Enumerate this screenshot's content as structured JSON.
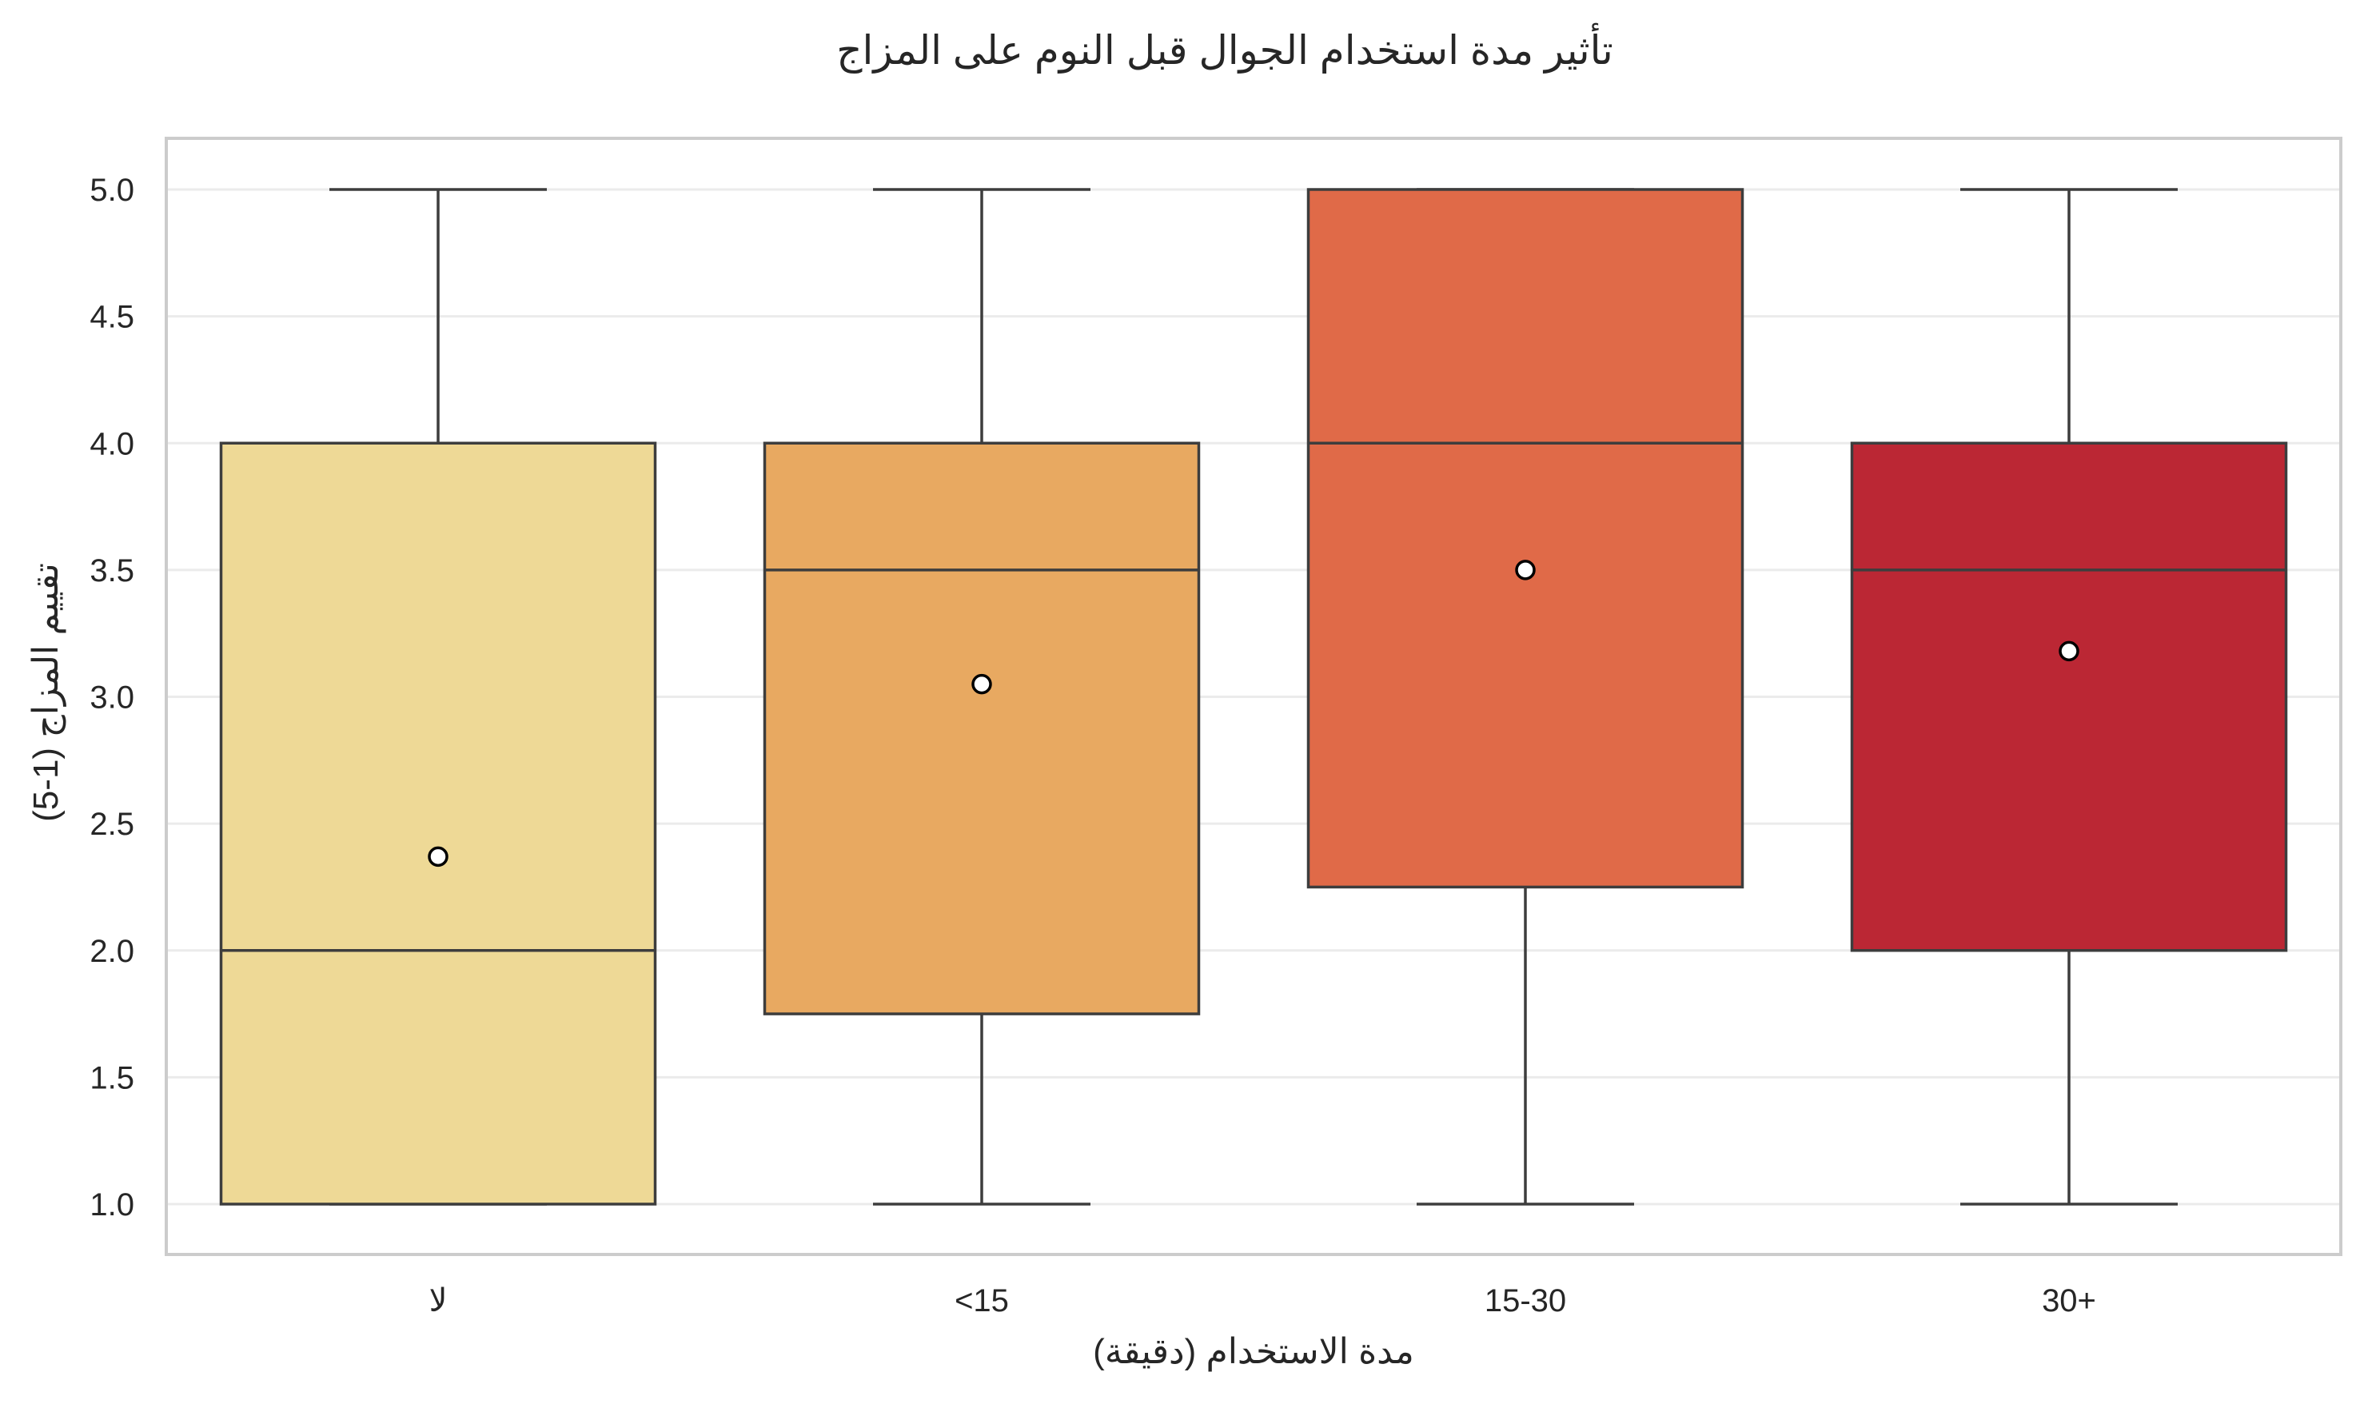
{
  "chart_data": {
    "type": "box",
    "title": "تأثير مدة استخدام الجوال قبل النوم على المزاج",
    "xlabel": "مدة الاستخدام (دقيقة)",
    "ylabel": "تقييم المزاج (1-5)",
    "ylim": [
      0.8,
      5.2
    ],
    "yticks": [
      "1.0",
      "1.5",
      "2.0",
      "2.5",
      "3.0",
      "3.5",
      "4.0",
      "4.5",
      "5.0"
    ],
    "grid": "horizontal",
    "categories": [
      "لا",
      "<15",
      "15-30",
      "30+"
    ],
    "colors": [
      "#eed996",
      "#e8a961",
      "#e06a48",
      "#bb2734"
    ],
    "boxes": [
      {
        "category": "لا",
        "whisker_low": 1.0,
        "q1": 1.0,
        "median": 2.0,
        "q3": 4.0,
        "whisker_high": 5.0,
        "mean": 2.37
      },
      {
        "category": "<15",
        "whisker_low": 1.0,
        "q1": 1.75,
        "median": 3.5,
        "q3": 4.0,
        "whisker_high": 5.0,
        "mean": 3.05
      },
      {
        "category": "15-30",
        "whisker_low": 1.0,
        "q1": 2.25,
        "median": 4.0,
        "q3": 5.0,
        "whisker_high": 5.0,
        "mean": 3.5
      },
      {
        "category": "30+",
        "whisker_low": 1.0,
        "q1": 2.0,
        "median": 3.5,
        "q3": 4.0,
        "whisker_high": 5.0,
        "mean": 3.18
      }
    ]
  }
}
